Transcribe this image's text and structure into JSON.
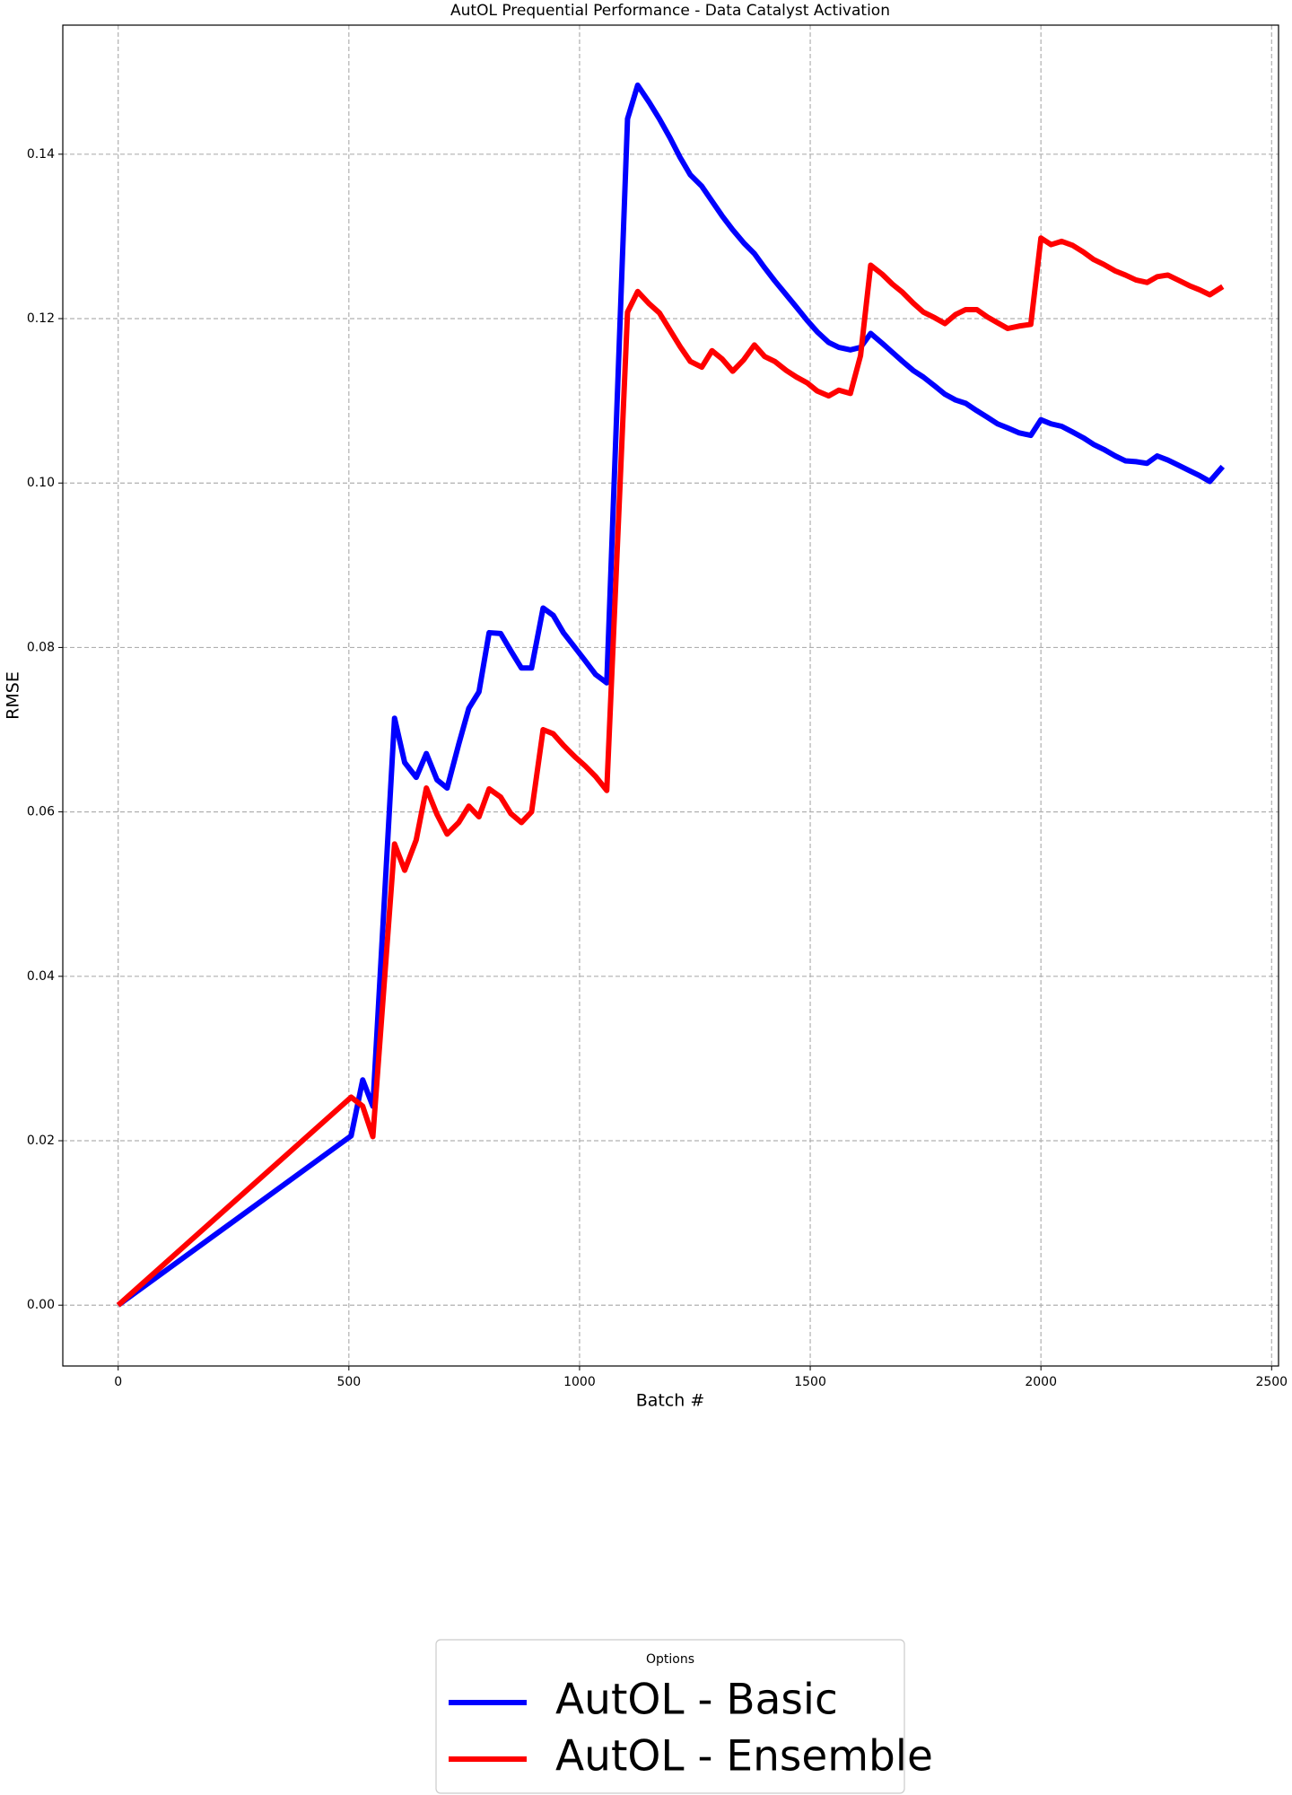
{
  "chart_data": {
    "type": "line",
    "title": "AutOL Prequential Performance - Data Catalyst Activation",
    "x_label": "Batch #",
    "y_label": "RMSE",
    "x": [
      0,
      505,
      530,
      552,
      599,
      621,
      646,
      668,
      691,
      713,
      738,
      760,
      782,
      804,
      829,
      851,
      874,
      896,
      921,
      943,
      965,
      990,
      1012,
      1035,
      1059,
      1104,
      1126,
      1151,
      1173,
      1196,
      1218,
      1240,
      1265,
      1287,
      1309,
      1332,
      1356,
      1379,
      1401,
      1423,
      1448,
      1470,
      1493,
      1515,
      1540,
      1562,
      1587,
      1609,
      1631,
      1656,
      1678,
      1700,
      1723,
      1745,
      1770,
      1792,
      1815,
      1837,
      1861,
      1884,
      1906,
      1928,
      1953,
      1978,
      2000,
      2022,
      2045,
      2069,
      2092,
      2114,
      2136,
      2161,
      2183,
      2206,
      2230,
      2252,
      2275,
      2297,
      2322,
      2344,
      2366,
      2394
    ],
    "series": [
      {
        "name": "AutOL - Basic",
        "color": "#0000ff",
        "values": [
          0,
          0.0206,
          0.0274,
          0.0242,
          0.0714,
          0.066,
          0.0642,
          0.0671,
          0.0639,
          0.0629,
          0.0682,
          0.0726,
          0.0746,
          0.0818,
          0.0817,
          0.0796,
          0.0775,
          0.0775,
          0.0848,
          0.0839,
          0.0818,
          0.08,
          0.0784,
          0.0767,
          0.0757,
          0.1443,
          0.1484,
          0.1463,
          0.1443,
          0.142,
          0.1396,
          0.1375,
          0.1361,
          0.1343,
          0.1325,
          0.1308,
          0.1292,
          0.1279,
          0.1262,
          0.1246,
          0.1229,
          0.1214,
          0.1198,
          0.1184,
          0.1171,
          0.1165,
          0.1162,
          0.1165,
          0.1182,
          0.117,
          0.1159,
          0.1148,
          0.1137,
          0.1129,
          0.1118,
          0.1108,
          0.1101,
          0.1097,
          0.1088,
          0.108,
          0.1072,
          0.1067,
          0.1061,
          0.1058,
          0.1077,
          0.1072,
          0.1069,
          0.1062,
          0.1055,
          0.1047,
          0.1041,
          0.1033,
          0.1027,
          0.1026,
          0.1024,
          0.1033,
          0.1028,
          0.1022,
          0.1015,
          0.1009,
          0.1002,
          0.102
        ]
      },
      {
        "name": "AutOL - Ensemble",
        "color": "#ff0000",
        "values": [
          0,
          0.0253,
          0.0242,
          0.0205,
          0.0561,
          0.0529,
          0.0566,
          0.0629,
          0.0597,
          0.0573,
          0.0587,
          0.0607,
          0.0594,
          0.0628,
          0.0618,
          0.0598,
          0.0587,
          0.06,
          0.07,
          0.0695,
          0.0681,
          0.0667,
          0.0656,
          0.0643,
          0.0626,
          0.1208,
          0.1233,
          0.1218,
          0.1207,
          0.1186,
          0.1166,
          0.1148,
          0.1141,
          0.1161,
          0.1151,
          0.1136,
          0.115,
          0.1168,
          0.1154,
          0.1148,
          0.1137,
          0.1129,
          0.1122,
          0.1112,
          0.1106,
          0.1113,
          0.1109,
          0.1155,
          0.1265,
          0.1254,
          0.1242,
          0.1232,
          0.1219,
          0.1208,
          0.1201,
          0.1194,
          0.1205,
          0.1211,
          0.1211,
          0.1202,
          0.1195,
          0.1188,
          0.1191,
          0.1193,
          0.1298,
          0.129,
          0.1294,
          0.1289,
          0.1281,
          0.1272,
          0.1266,
          0.1258,
          0.1253,
          0.1247,
          0.1244,
          0.1251,
          0.1253,
          0.1247,
          0.124,
          0.1235,
          0.1229,
          0.1239
        ]
      }
    ],
    "xlim": [
      -120,
      2515
    ],
    "ylim": [
      -0.0074,
      0.1557
    ],
    "xticks": [
      0,
      500,
      1000,
      1500,
      2000,
      2500
    ],
    "yticks": [
      {
        "value": 0,
        "label": "0.00"
      },
      0.02,
      0.04,
      0.06,
      0.08,
      {
        "value": 0.1,
        "label": "0.10"
      },
      0.12,
      0.14
    ],
    "grid": true,
    "legend_title": "Options",
    "legend_position": "bottom"
  }
}
